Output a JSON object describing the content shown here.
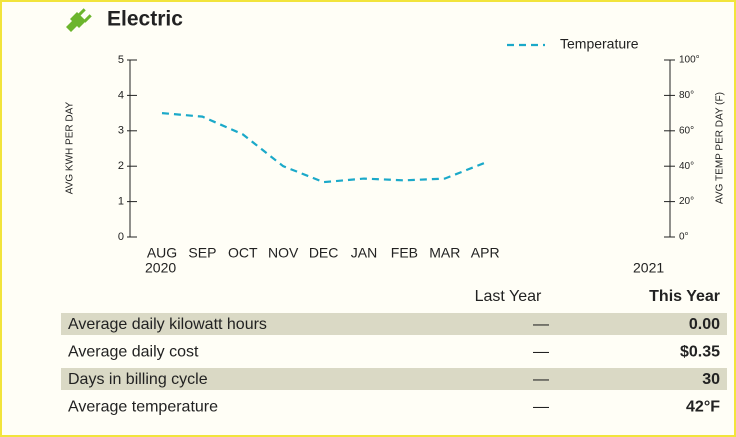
{
  "header": {
    "title": "Electric"
  },
  "chart_data": {
    "type": "line",
    "categories": [
      "AUG",
      "SEP",
      "OCT",
      "NOV",
      "DEC",
      "JAN",
      "FEB",
      "MAR",
      "APR"
    ],
    "year_labels": [
      "2020",
      "2021"
    ],
    "ylabel": "AVG KWH PER DAY",
    "y2label": "AVG TEMP PER DAY (F)",
    "ylim": [
      0,
      5
    ],
    "yticks": [
      0,
      1,
      2,
      3,
      4,
      5
    ],
    "y2lim": [
      0,
      100
    ],
    "y2ticks": [
      {
        "value": 0,
        "label": "0°"
      },
      {
        "value": 20,
        "label": "20°"
      },
      {
        "value": 40,
        "label": "40°"
      },
      {
        "value": 60,
        "label": "60°"
      },
      {
        "value": 80,
        "label": "80°"
      },
      {
        "value": 100,
        "label": "100°"
      }
    ],
    "legend": "top-right",
    "series": [
      {
        "name": "Temperature",
        "color": "#1ba9c9",
        "axis": "y2",
        "values": [
          70,
          68,
          58,
          40,
          31,
          33,
          32,
          33,
          42
        ]
      }
    ]
  },
  "table": {
    "columns": [
      "Last Year",
      "This Year"
    ],
    "rows": [
      [
        "Average daily kilowatt hours",
        "—",
        "0.00"
      ],
      [
        "Average daily cost",
        "—",
        "$0.35"
      ],
      [
        "Days in billing cycle",
        "—",
        "30"
      ],
      [
        "Average temperature",
        "—",
        "42°F"
      ]
    ]
  }
}
